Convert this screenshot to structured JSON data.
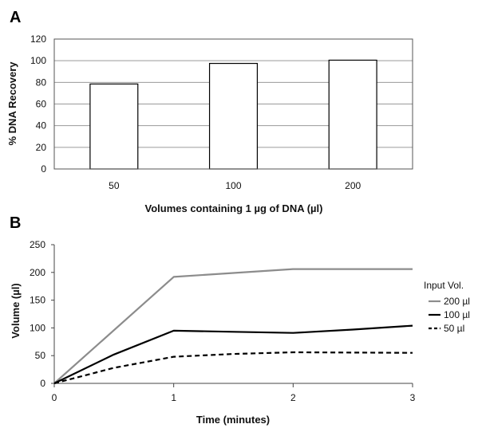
{
  "chart_data": [
    {
      "panel_label": "A",
      "type": "bar",
      "categories": [
        "50",
        "100",
        "200"
      ],
      "values": [
        78.5,
        97.5,
        100.5
      ],
      "xlabel": "Volumes containing 1 µg of DNA (µl)",
      "ylabel": "% DNA Recovery",
      "ylim": [
        0,
        120
      ],
      "yticks": [
        "0",
        "20",
        "40",
        "60",
        "80",
        "100",
        "120"
      ],
      "grid": true,
      "bar_color": "#ffffff"
    },
    {
      "panel_label": "B",
      "type": "line",
      "x": [
        0,
        1,
        2,
        3
      ],
      "xticks": [
        "0",
        "1",
        "2",
        "3"
      ],
      "yticks": [
        "0",
        "50",
        "100",
        "150",
        "200",
        "250"
      ],
      "xlim": [
        0,
        3
      ],
      "ylim": [
        0,
        250
      ],
      "xlabel": "Time (minutes)",
      "ylabel": "Volume (µl)",
      "grid": false,
      "legend_title": "Input Vol.",
      "legend_position": "right",
      "series": [
        {
          "name": "200 µl",
          "color": "#8c8c8c",
          "style": "solid",
          "points": [
            [
              0,
              0
            ],
            [
              1,
              192
            ],
            [
              1.5,
              199
            ],
            [
              2,
              206
            ],
            [
              3,
              206
            ]
          ]
        },
        {
          "name": "100 µl",
          "color": "#000000",
          "style": "solid",
          "points": [
            [
              0,
              0
            ],
            [
              0.5,
              52
            ],
            [
              1,
              95
            ],
            [
              1.5,
              93
            ],
            [
              2,
              91
            ],
            [
              2.5,
              97
            ],
            [
              3,
              104
            ]
          ]
        },
        {
          "name": "50  µl",
          "color": "#000000",
          "style": "dashed",
          "points": [
            [
              0,
              0
            ],
            [
              0.5,
              28
            ],
            [
              1,
              48
            ],
            [
              1.5,
              53
            ],
            [
              2,
              56
            ],
            [
              3,
              55
            ]
          ]
        }
      ]
    }
  ]
}
